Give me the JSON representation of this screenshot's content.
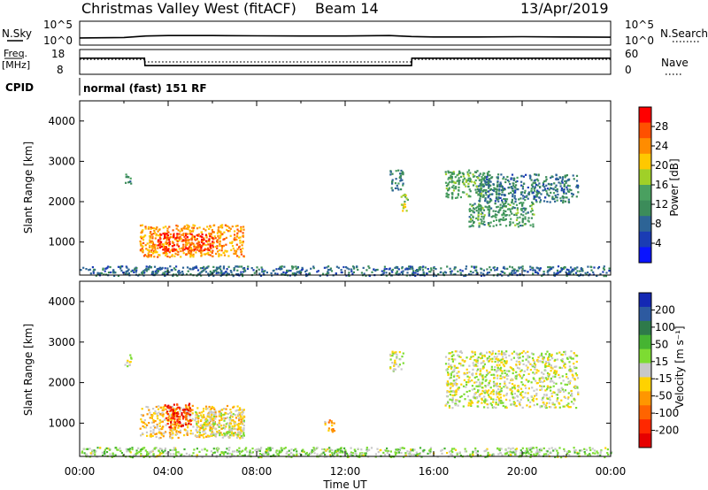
{
  "header": {
    "title": "Christmas Valley West (fitACF)",
    "beam": "Beam 14",
    "date": "13/Apr/2019"
  },
  "nsky_panel": {
    "left_label": "N.Sky",
    "right_label": "N.Search",
    "left_ticks": [
      "10^5",
      "10^0"
    ],
    "right_ticks": [
      "10^5",
      "10^0"
    ]
  },
  "freq_panel": {
    "left_label_1": "Freq.",
    "left_label_2": "[MHz]",
    "right_label": "Nave",
    "left_ticks": [
      "18",
      "8"
    ],
    "right_ticks": [
      "60",
      "0"
    ]
  },
  "cpid": {
    "label": "CPID",
    "mode": "normal (fast) 151 RF"
  },
  "power_colorbar": {
    "label": "Power [dB]",
    "ticks": [
      "28",
      "24",
      "20",
      "16",
      "12",
      "8",
      "4"
    ],
    "colors": [
      "#ff0000",
      "#ff5000",
      "#ff8c00",
      "#ffc800",
      "#a0d028",
      "#4aa060",
      "#3c8c5a",
      "#2d6496",
      "#1a3cb4",
      "#0a14ff"
    ]
  },
  "velocity_colorbar": {
    "label": "Velocity [m s⁻¹]",
    "ticks": [
      "200",
      "100",
      "50",
      "15",
      "-15",
      "-50",
      "-100",
      "-200"
    ],
    "colors": [
      "#1428b4",
      "#2d5aa0",
      "#2e7a4a",
      "#46b432",
      "#7ddc32",
      "#c8c8c8",
      "#ffd200",
      "#ff9600",
      "#ff6400",
      "#ff2800",
      "#e60000"
    ]
  },
  "chart_data": [
    {
      "type": "line",
      "title": "N.Sky / N.Search",
      "x": [
        "00:00",
        "02:00",
        "03:00",
        "04:00",
        "06:00",
        "08:00",
        "10:00",
        "12:00",
        "14:00",
        "15:00",
        "16:00",
        "18:00",
        "20:00",
        "22:00",
        "24:00"
      ],
      "series": [
        {
          "name": "N.Sky",
          "values": [
            0.3,
            0.32,
            0.38,
            0.4,
            0.4,
            0.39,
            0.38,
            0.38,
            0.4,
            0.36,
            0.34,
            0.34,
            0.35,
            0.34,
            0.33
          ]
        }
      ],
      "ylim": [
        0,
        1
      ]
    },
    {
      "type": "line",
      "title": "Freq. / Nave",
      "x": [
        "00:00",
        "02:56",
        "02:57",
        "15:00",
        "15:01",
        "24:00"
      ],
      "series": [
        {
          "name": "Freq.",
          "values": [
            14.5,
            14.5,
            11.5,
            11.5,
            14.5,
            14.5
          ]
        }
      ],
      "ylim": [
        8,
        18
      ]
    },
    {
      "type": "heatmap",
      "title": "Power",
      "xlabel": "",
      "ylabel": "Slant Range [km]",
      "x_ticks": [
        "00:00",
        "04:00",
        "08:00",
        "12:00",
        "16:00",
        "20:00",
        "00:00"
      ],
      "y_ticks": [
        4000,
        3000,
        2000,
        1000
      ],
      "xlim": [
        0,
        24
      ],
      "ylim": [
        180,
        4500
      ],
      "regions": [
        {
          "t0": 2.7,
          "t1": 7.4,
          "r0": 650,
          "r1": 1450,
          "value": 22
        },
        {
          "t0": 3.5,
          "t1": 6.0,
          "r0": 800,
          "r1": 1250,
          "value": 27
        },
        {
          "t0": 2.0,
          "t1": 2.3,
          "r0": 2400,
          "r1": 2700,
          "value": 10
        },
        {
          "t0": 14.0,
          "t1": 14.6,
          "r0": 2300,
          "r1": 2800,
          "value": 10
        },
        {
          "t0": 14.5,
          "t1": 14.8,
          "r0": 1700,
          "r1": 2200,
          "value": 16
        },
        {
          "t0": 16.5,
          "t1": 18.5,
          "r0": 2100,
          "r1": 2800,
          "value": 13
        },
        {
          "t0": 17.5,
          "t1": 20.5,
          "r0": 1400,
          "r1": 2000,
          "value": 12
        },
        {
          "t0": 18.0,
          "t1": 22.5,
          "r0": 2000,
          "r1": 2700,
          "value": 9
        },
        {
          "t0": 0.0,
          "t1": 24.0,
          "r0": 180,
          "r1": 420,
          "value": 8
        }
      ],
      "colorbar": {
        "label": "Power [dB]",
        "range": [
          0,
          30
        ]
      }
    },
    {
      "type": "heatmap",
      "title": "Velocity",
      "xlabel": "Time UT",
      "ylabel": "Slant Range [km]",
      "x_ticks": [
        "00:00",
        "04:00",
        "08:00",
        "12:00",
        "16:00",
        "20:00",
        "00:00"
      ],
      "y_ticks": [
        4000,
        3000,
        2000,
        1000
      ],
      "xlim": [
        0,
        24
      ],
      "ylim": [
        180,
        4500
      ],
      "regions": [
        {
          "t0": 2.7,
          "t1": 7.4,
          "r0": 650,
          "r1": 1450,
          "value": -40
        },
        {
          "t0": 3.8,
          "t1": 5.0,
          "r0": 900,
          "r1": 1500,
          "value": -150
        },
        {
          "t0": 5.2,
          "t1": 7.4,
          "r0": 700,
          "r1": 1300,
          "value": 0
        },
        {
          "t0": 2.0,
          "t1": 2.3,
          "r0": 2400,
          "r1": 2700,
          "value": 0
        },
        {
          "t0": 14.0,
          "t1": 14.6,
          "r0": 2300,
          "r1": 2800,
          "value": 0
        },
        {
          "t0": 16.5,
          "t1": 22.5,
          "r0": 1400,
          "r1": 2800,
          "value": 0
        },
        {
          "t0": 11.0,
          "t1": 11.5,
          "r0": 800,
          "r1": 1100,
          "value": -60
        },
        {
          "t0": 0.0,
          "t1": 24.0,
          "r0": 180,
          "r1": 420,
          "value": 25
        }
      ],
      "colorbar": {
        "label": "Velocity [m s⁻¹]",
        "range": [
          -200,
          200
        ]
      }
    }
  ]
}
